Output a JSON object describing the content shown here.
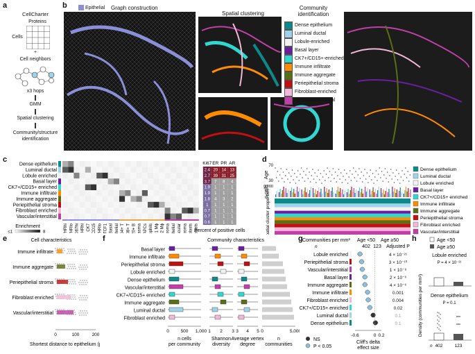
{
  "panels": {
    "a": "a",
    "b": "b",
    "c": "c",
    "d": "d",
    "e": "e",
    "f": "f",
    "g": "g",
    "h": "h"
  },
  "a": {
    "title": "CellCharter",
    "proteins": "Proteins",
    "cells": "Cells",
    "plus": "+",
    "neighbors": "Cell neighbors",
    "hops": "x3 hops",
    "gmm": "GMM",
    "spatial": "Spatial clustering",
    "community": "Community/structure identification"
  },
  "b": {
    "epithelial": "Epithelial",
    "graph": "Graph construction",
    "spatial": "Spatial clustering",
    "community": "Community identification"
  },
  "communities": [
    {
      "name": "Dense epithelium",
      "color": "#0c8a8a"
    },
    {
      "name": "Luminal ductal",
      "color": "#9ed4e8"
    },
    {
      "name": "Lobule-enriched",
      "color": "#f2f2f2"
    },
    {
      "name": "Basal layer",
      "color": "#6a1ea0"
    },
    {
      "name": "CK7+/CD15+-enriched",
      "color": "#30d8d0"
    },
    {
      "name": "Immune infiltrate",
      "color": "#ff8c00"
    },
    {
      "name": "Immune aggregate",
      "color": "#5a6e14"
    },
    {
      "name": "Periepithelial stroma",
      "color": "#c01010"
    },
    {
      "name": "Fibroblast-enriched",
      "color": "#f2b8d8"
    },
    {
      "name": "Vascular/interstitial",
      "color": "#c040a8"
    }
  ],
  "c": {
    "rows": [
      "Dense epithelium",
      "Luminal ductal",
      "Lobule enriched",
      "Basal layer",
      "CK7+/CD15+ enriched",
      "Immune infiltrate",
      "Immune aggregate",
      "Periepithelial stroma",
      "Fibroblast enriched",
      "Vascular/interstitial"
    ],
    "cols": [
      "GATA3/HRhi",
      "GATA3/HRlo",
      "MHC-I/Ki67hi",
      "HRhi",
      "CK7",
      "CD15",
      "GATA3/HRlo",
      "TCF1",
      "Basal",
      "Myoepithelial",
      "CD4+ T",
      "CD8+ T",
      "CD20+ B",
      "Plasma",
      "APCs",
      "Neutrophils",
      "M1 Mϕ",
      "M2 Mϕ",
      "PDGFRβ stroma",
      "Endothelial",
      "Perivascular",
      "PDPN stroma",
      "Myofibroblasts",
      "Fibroblasts"
    ],
    "pct_headers": [
      "Ki67",
      "ER",
      "PR",
      "AR"
    ],
    "pct_values": [
      [
        "2.4",
        "20",
        "14",
        "13"
      ],
      [
        "2.7",
        "39",
        "31",
        "25"
      ],
      [
        "3.7",
        "7",
        "8",
        "4"
      ],
      [
        "1.9",
        "1",
        "1",
        "1"
      ],
      [
        "1.9",
        "1",
        "1",
        "1"
      ],
      [
        "1.8",
        "4",
        "3",
        "2"
      ],
      [
        "1",
        "1",
        "1",
        "1"
      ],
      [
        "0.7",
        "1",
        "1",
        "1"
      ],
      [
        "0.7",
        "1",
        "1",
        "1"
      ],
      [
        "0.6",
        "1",
        "1",
        "1"
      ]
    ],
    "pct_label": "Percent of positive cells",
    "enrichment": "Enrichment",
    "scale_lo": "≤1",
    "scale_hi": "8"
  },
  "d": {
    "age": "Age",
    "age_ticks": [
      "70",
      "30"
    ],
    "ncells": "n cells",
    "ncells_ticks": [
      "30,000",
      "0"
    ],
    "prop": "Spatial cluster proportion",
    "legend": [
      "Dense epithelium",
      "Luminal ductal",
      "Lobule enriched",
      "Basal layer",
      "CK7+/CD15+ enriched",
      "Immune infiltrate",
      "Immune aggregate",
      "Periepithelial stroma",
      "Fibroblast enriched",
      "Vascular/interstitial"
    ]
  },
  "e": {
    "title": "Cell characteristics",
    "rows": [
      "Immune infiltrate",
      "Immune aggregate",
      "Periepithelial stroma",
      "Fibroblast enriched",
      "Vascular/interstitial"
    ],
    "xticks": [
      "0",
      "100",
      "200"
    ],
    "xlabel": "Shortest distance to epithelium (μm)"
  },
  "f": {
    "title": "Community characteristics",
    "rows": [
      "Basal layer",
      "Immune infiltrate",
      "Periepithelial stroma",
      "Lobule enriched",
      "Dense epithelium",
      "Vascular/interstitial",
      "CK7+/CD15+ enriched",
      "Immune aggregate",
      "Luminal ductal",
      "Fibroblast enriched"
    ],
    "x1_ticks": [
      "0",
      "500",
      "1,000"
    ],
    "x1_label": "n cells per community",
    "x2_ticks": [
      "1",
      "2",
      "3"
    ],
    "x2_label": "Shannon diversity",
    "x3_ticks": [
      "3",
      "4",
      "5"
    ],
    "x3_label": "Average vertex degree",
    "x4_ticks": [
      "0",
      "5,000"
    ],
    "x4_label": "n communities"
  },
  "g": {
    "title": "Communities per mm²",
    "age_lo": "Age <50",
    "age_hi": "Age ≥50",
    "n_label": "n",
    "n_lo": "402",
    "n_hi": "123",
    "adj": "Adjusted P",
    "rows": [
      "Lobule enriched",
      "Periepithelial stroma",
      "Vascular/interstitial",
      "Basal layer",
      "Immune aggregate",
      "Immune infiltrate",
      "Fibroblast enriched",
      "CK7+/CD15+ enriched",
      "Luminal ductal",
      "Dense epithelium"
    ],
    "pvals": [
      "4 × 10⁻²¹",
      "3 × 10⁻¹⁰",
      "1 × 10⁻⁸",
      "2 × 10⁻⁶",
      "4 × 10⁻⁶",
      "0.001",
      "0.004",
      "0.02",
      "0.1",
      "0.1"
    ],
    "effects": [
      -0.45,
      -0.4,
      -0.38,
      -0.3,
      -0.3,
      -0.22,
      -0.2,
      -0.15,
      -0.05,
      0.02
    ],
    "xticks": [
      "-0.6",
      "0",
      "0.2"
    ],
    "xlabel": "Cliff's delta effect size",
    "ns": "NS",
    "sig": "P < 0.05"
  },
  "h": {
    "age_lo": "Age <50",
    "age_hi": "Age ≥50",
    "sub1": "Lobule enriched",
    "p1": "P = 4 × 10⁻²¹",
    "sub2": "Dense epithelium",
    "p2": "P = 0.1",
    "ylabel": "Density (communities per mm²)",
    "n_label": "n",
    "n_lo": "402",
    "n_hi": "123"
  }
}
